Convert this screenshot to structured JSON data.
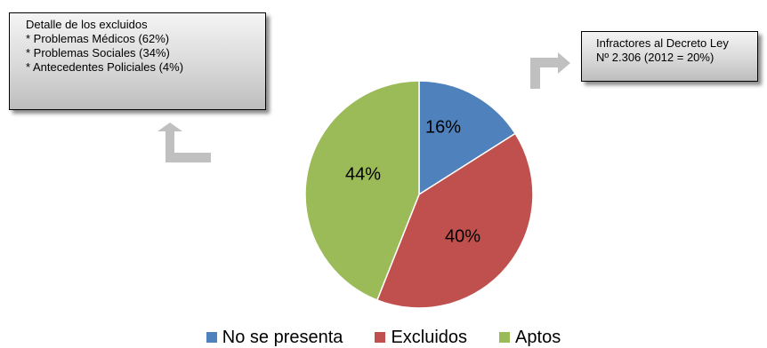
{
  "callouts": {
    "left": {
      "title": "Detalle de los excluidos",
      "items": [
        "* Problemas Médicos (62%)",
        "* Problemas Sociales (34%)",
        "* Antecedentes Policiales (4%)"
      ]
    },
    "right": {
      "lines": [
        "Infractores al Decreto Ley",
        "Nº 2.306 (2012 = 20%)"
      ]
    }
  },
  "arrow_color": "#c0c0c0",
  "chart_data": {
    "type": "pie",
    "title": "",
    "start_angle_deg": 0,
    "direction": "clockwise",
    "legend_position": "bottom",
    "slices": [
      {
        "name": "No se presenta",
        "value": 16,
        "label": "16%",
        "color": "#4f81bd"
      },
      {
        "name": "Excluidos",
        "value": 40,
        "label": "40%",
        "color": "#c0504d"
      },
      {
        "name": "Aptos",
        "value": 44,
        "label": "44%",
        "color": "#9bbb59"
      }
    ]
  }
}
